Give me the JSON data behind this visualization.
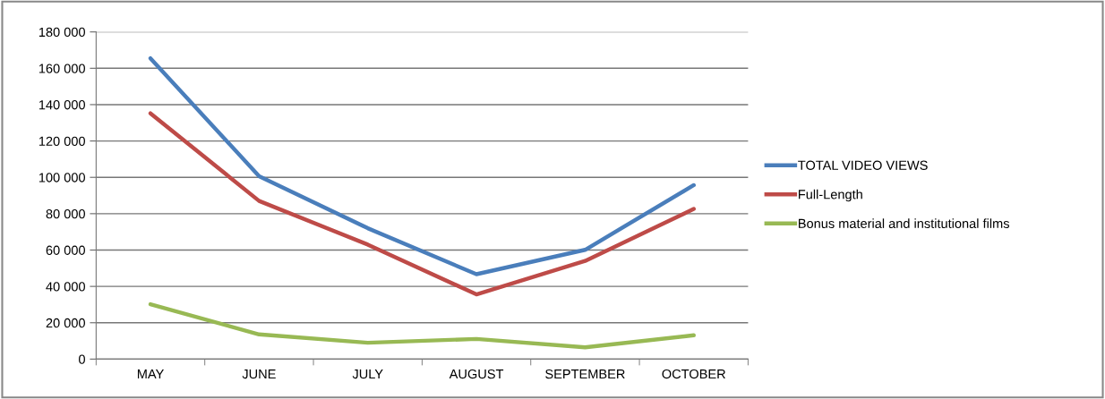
{
  "chart_data": {
    "type": "line",
    "categories": [
      "MAY",
      "JUNE",
      "JULY",
      "AUGUST",
      "SEPTEMBER",
      "OCTOBER"
    ],
    "series": [
      {
        "name": "TOTAL VIDEO VIEWS",
        "color": "#4a7ebb",
        "values": [
          165500,
          100600,
          72000,
          46700,
          60100,
          95700
        ]
      },
      {
        "name": "Full-Length",
        "color": "#be4b48",
        "values": [
          135200,
          87000,
          63000,
          35600,
          54000,
          82600
        ]
      },
      {
        "name": "Bonus material and institutional films",
        "color": "#98b954",
        "values": [
          30200,
          13600,
          9000,
          11100,
          6500,
          13100
        ]
      }
    ],
    "ylim": [
      0,
      180000
    ],
    "yticks": [
      {
        "value": 0,
        "label": "0"
      },
      {
        "value": 20000,
        "label": "20 000"
      },
      {
        "value": 40000,
        "label": "40 000"
      },
      {
        "value": 60000,
        "label": "60 000"
      },
      {
        "value": 80000,
        "label": "80 000"
      },
      {
        "value": 100000,
        "label": "100 000"
      },
      {
        "value": 120000,
        "label": "120 000"
      },
      {
        "value": 140000,
        "label": "140 000"
      },
      {
        "value": 160000,
        "label": "160 000"
      },
      {
        "value": 180000,
        "label": "180 000"
      }
    ],
    "grid": "y",
    "legend": "right",
    "marker": "none",
    "line_style": "solid"
  }
}
